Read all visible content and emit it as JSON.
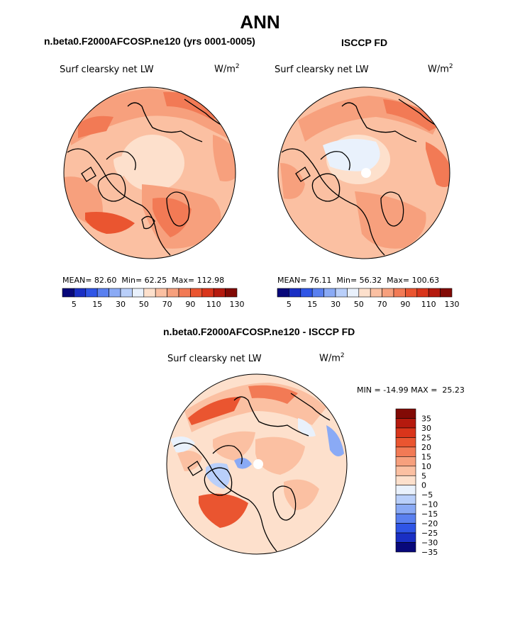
{
  "chart_data": [
    {
      "type": "heatmap",
      "projection": "north-polar-stereographic",
      "title": "ANN",
      "subtitle": "n.beta0.F2000AFCOSP.ne120 (yrs 0001-0005)",
      "variable": "Surf clearsky net LW",
      "units": "W/m",
      "units_exp": "2",
      "stats": {
        "mean_label": "MEAN=",
        "mean": "82.60",
        "min_label": "Min=",
        "min": "62.25",
        "max_label": "Max=",
        "max": "112.98"
      },
      "colorbar": {
        "levels": [
          5,
          10,
          15,
          20,
          30,
          40,
          50,
          60,
          70,
          80,
          90,
          100,
          110,
          120,
          130
        ],
        "tick_labels": [
          "5",
          "15",
          "30",
          "50",
          "70",
          "90",
          "110",
          "130"
        ]
      }
    },
    {
      "type": "heatmap",
      "projection": "north-polar-stereographic",
      "subtitle": "ISCCP FD",
      "variable": "Surf clearsky net LW",
      "units": "W/m",
      "units_exp": "2",
      "stats": {
        "mean_label": "MEAN=",
        "mean": "76.11",
        "min_label": "Min=",
        "min": "56.32",
        "max_label": "Max=",
        "max": "100.63"
      },
      "colorbar": {
        "levels": [
          5,
          10,
          15,
          20,
          30,
          40,
          50,
          60,
          70,
          80,
          90,
          100,
          110,
          120,
          130
        ],
        "tick_labels": [
          "5",
          "15",
          "30",
          "50",
          "70",
          "90",
          "110",
          "130"
        ]
      }
    },
    {
      "type": "heatmap",
      "projection": "north-polar-stereographic",
      "subtitle": "n.beta0.F2000AFCOSP.ne120 - ISCCP FD",
      "variable": "Surf clearsky net LW",
      "units": "W/m",
      "units_exp": "2",
      "stats": {
        "min_label": "MIN =",
        "min": "-14.99",
        "max_label": "MAX =",
        "max": "25.23"
      },
      "colorbar": {
        "levels": [
          35,
          30,
          25,
          20,
          15,
          10,
          5,
          0,
          -5,
          -10,
          -15,
          -20,
          -25,
          -30,
          -35
        ],
        "tick_labels": [
          "35",
          "30",
          "25",
          "20",
          "15",
          "10",
          "5",
          "0",
          "−5",
          "−10",
          "−15",
          "−20",
          "−25",
          "−30",
          "−35"
        ]
      }
    }
  ],
  "colors": {
    "abs_scale": [
      "#08087a",
      "#1a2fc4",
      "#2f55e6",
      "#5a80f0",
      "#8aaaf5",
      "#b9cffa",
      "#e9f1fc",
      "#fde0cc",
      "#fbc0a2",
      "#f7a07d",
      "#f27a55",
      "#ea5530",
      "#d9351b",
      "#b51a0e",
      "#820a05"
    ],
    "diff_scale": [
      "#820a05",
      "#b51a0e",
      "#d9351b",
      "#ea5530",
      "#f27a55",
      "#f7a07d",
      "#fbc0a2",
      "#fde0cc",
      "#e9f1fc",
      "#b9cffa",
      "#8aaaf5",
      "#5a80f0",
      "#2f55e6",
      "#1a2fc4",
      "#08087a"
    ]
  }
}
